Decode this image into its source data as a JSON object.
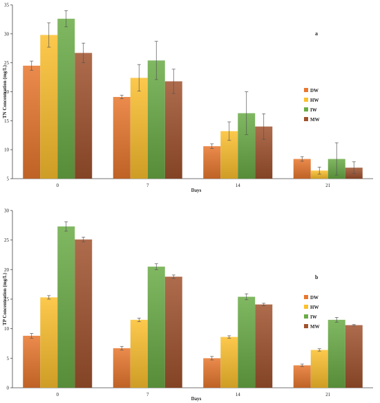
{
  "chart_data": [
    {
      "type": "bar",
      "panel_label": "a",
      "categories": [
        "0",
        "7",
        "14",
        "21"
      ],
      "xlabel": "Days",
      "ylabel": "TN Concentration (mg/L)",
      "ylim": [
        5,
        35
      ],
      "yticks": [
        5,
        10,
        15,
        20,
        25,
        30,
        35
      ],
      "grid": false,
      "legend": "right",
      "series": [
        {
          "name": "DW",
          "color": "#e8772e",
          "values": [
            24.5,
            19.1,
            10.6,
            8.4
          ],
          "errors": [
            0.8,
            0.3,
            0.4,
            0.4
          ]
        },
        {
          "name": "HW",
          "color": "#fbc02d",
          "values": [
            29.8,
            22.4,
            13.2,
            6.4
          ],
          "errors": [
            2.1,
            2.3,
            1.6,
            0.6
          ]
        },
        {
          "name": "IW",
          "color": "#6aab46",
          "values": [
            32.6,
            25.4,
            16.3,
            8.4
          ],
          "errors": [
            1.4,
            3.3,
            3.7,
            2.8
          ]
        },
        {
          "name": "MW",
          "color": "#a0522d",
          "values": [
            26.7,
            21.8,
            14.0,
            6.9
          ],
          "errors": [
            1.7,
            2.1,
            2.2,
            1.0
          ]
        }
      ]
    },
    {
      "type": "bar",
      "panel_label": "b",
      "categories": [
        "0",
        "7",
        "14",
        "21"
      ],
      "xlabel": "Days",
      "ylabel": "TP Concentration (mg/L)",
      "ylim": [
        0,
        30
      ],
      "yticks": [
        0,
        5,
        10,
        15,
        20,
        25,
        30
      ],
      "grid": false,
      "legend": "right",
      "series": [
        {
          "name": "DW",
          "color": "#e8772e",
          "values": [
            8.8,
            6.7,
            5.0,
            3.8
          ],
          "errors": [
            0.4,
            0.3,
            0.3,
            0.2
          ]
        },
        {
          "name": "HW",
          "color": "#fbc02d",
          "values": [
            15.3,
            11.5,
            8.6,
            6.4
          ],
          "errors": [
            0.3,
            0.3,
            0.2,
            0.2
          ]
        },
        {
          "name": "IW",
          "color": "#6aab46",
          "values": [
            27.3,
            20.5,
            15.4,
            11.5
          ],
          "errors": [
            0.8,
            0.5,
            0.5,
            0.4
          ]
        },
        {
          "name": "MW",
          "color": "#a0522d",
          "values": [
            25.1,
            18.8,
            14.1,
            10.6
          ],
          "errors": [
            0.4,
            0.3,
            0.2,
            0.1
          ]
        }
      ]
    }
  ]
}
